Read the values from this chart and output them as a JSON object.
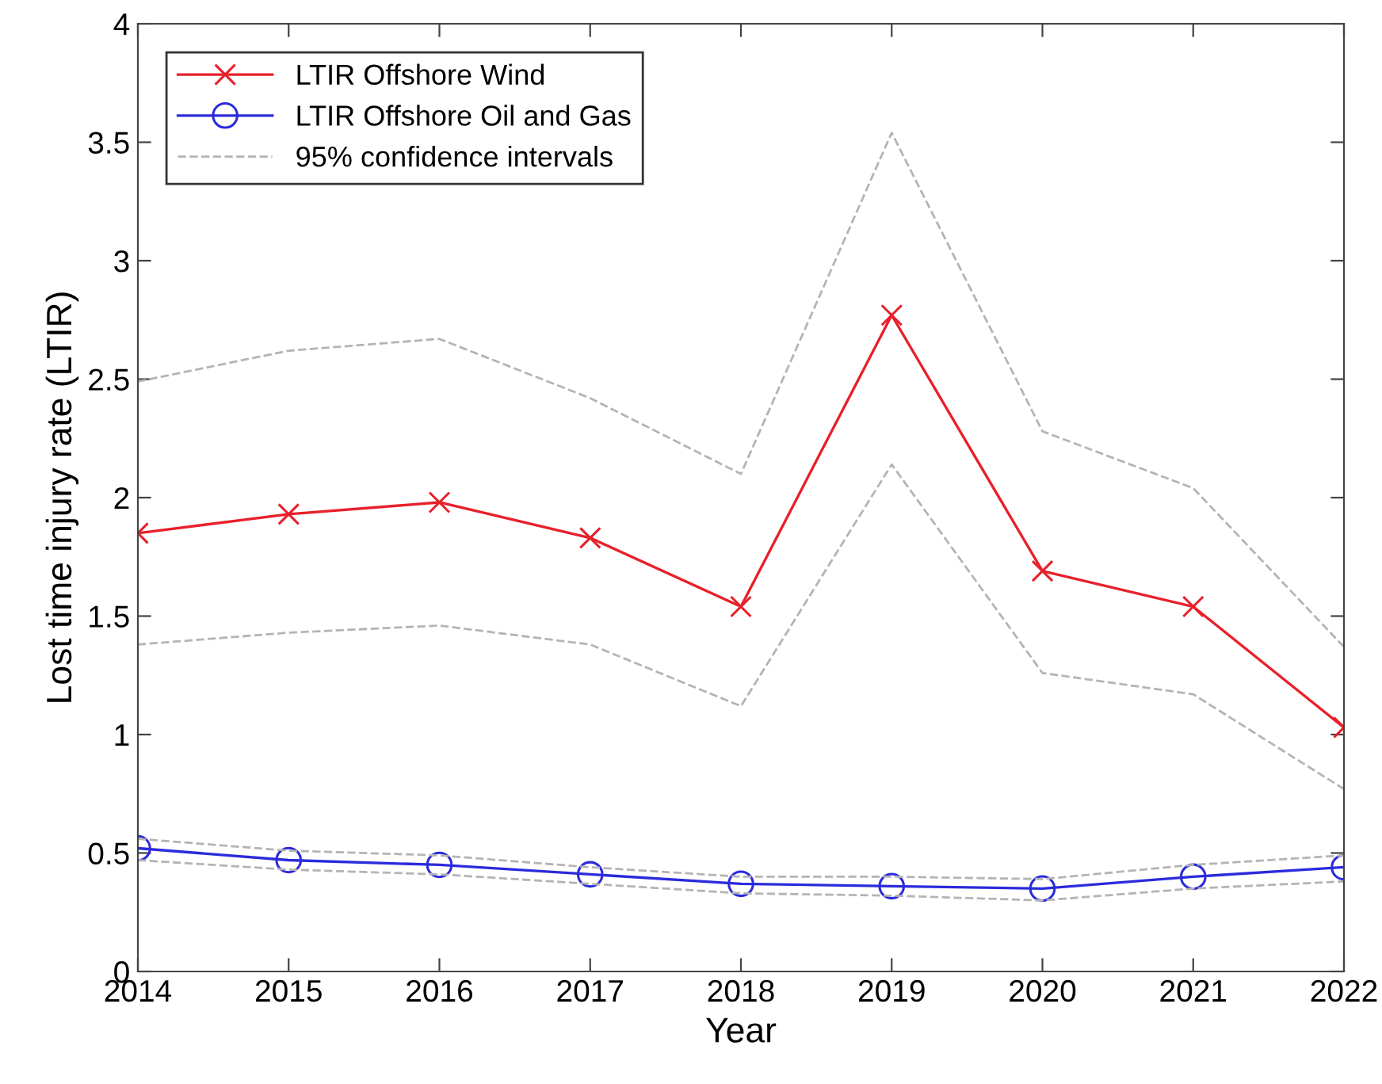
{
  "chart_data": {
    "type": "line",
    "xlabel": "Year",
    "ylabel": "Lost time injury rate (LTIR)",
    "x": [
      2014,
      2015,
      2016,
      2017,
      2018,
      2019,
      2020,
      2021,
      2022
    ],
    "series": [
      {
        "name": "LTIR Offshore Wind",
        "color": "#e8202a",
        "marker": "cross",
        "line_style": "solid",
        "values": [
          1.85,
          1.93,
          1.98,
          1.83,
          1.54,
          2.77,
          1.69,
          1.54,
          1.03
        ]
      },
      {
        "name": "LTIR Offshore Oil and Gas",
        "color": "#2b2bdc",
        "marker": "circle",
        "line_style": "solid",
        "values": [
          0.52,
          0.47,
          0.45,
          0.41,
          0.37,
          0.36,
          0.35,
          0.4,
          0.44
        ]
      },
      {
        "name": "95% confidence intervals",
        "color": "#b4b4b4",
        "marker": "none",
        "line_style": "dashed",
        "values": [
          2.49,
          2.62,
          2.67,
          2.42,
          2.1,
          3.54,
          2.28,
          2.04,
          1.37
        ]
      },
      {
        "color": "#b4b4b4",
        "marker": "none",
        "line_style": "dashed",
        "values": [
          1.38,
          1.43,
          1.46,
          1.38,
          1.12,
          2.14,
          1.26,
          1.17,
          0.77
        ]
      },
      {
        "color": "#b4b4b4",
        "marker": "none",
        "line_style": "dashed",
        "values": [
          0.56,
          0.51,
          0.49,
          0.44,
          0.4,
          0.4,
          0.39,
          0.45,
          0.49
        ]
      },
      {
        "color": "#b4b4b4",
        "marker": "none",
        "line_style": "dashed",
        "values": [
          0.47,
          0.43,
          0.41,
          0.37,
          0.33,
          0.32,
          0.3,
          0.35,
          0.38
        ]
      }
    ],
    "xlim": [
      2014,
      2022
    ],
    "xticks": [
      2014,
      2015,
      2016,
      2017,
      2018,
      2019,
      2020,
      2021,
      2022
    ],
    "ylim": [
      0,
      4
    ],
    "yticks": [
      0,
      0.5,
      1,
      1.5,
      2,
      2.5,
      3,
      3.5,
      4
    ],
    "grid": false,
    "legend": "top left"
  }
}
